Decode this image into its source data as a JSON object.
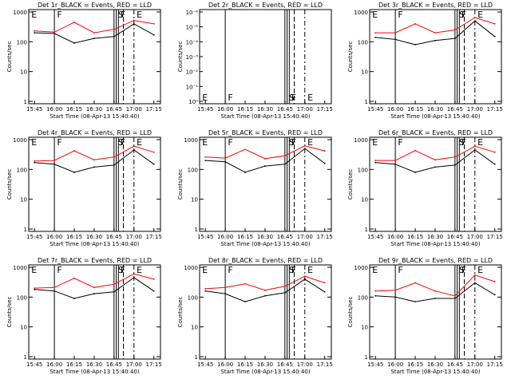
{
  "figure": {
    "x_tick_labels": [
      "15:45",
      "16:00",
      "16:15",
      "16:30",
      "16:45",
      "17:00",
      "17:15"
    ],
    "x_label": "Start Time (08-Apr-13 15:40:40)",
    "y_label": "Counts/sec",
    "y_tick_labels": [
      "1",
      "10",
      "100",
      "1000"
    ],
    "flag_letters": [
      "E",
      "F",
      "F",
      "S",
      "E"
    ],
    "colors": {
      "events": "#000000",
      "lld": "#ff0000",
      "axes": "#000000",
      "background": "#ffffff"
    }
  },
  "chart_data": [
    {
      "type": "line",
      "detector": "1r",
      "title": "Det 1r_BLACK = Events, RED = LLD",
      "xlabel": "Start Time (08-Apr-13 15:40:40)",
      "ylabel": "Counts/sec",
      "ylim": [
        1,
        1000
      ],
      "yscale": "log",
      "x": [
        "15:45",
        "16:00",
        "16:15",
        "16:30",
        "16:45",
        "17:00",
        "17:15"
      ],
      "series": [
        {
          "name": "Events",
          "color": "#000000",
          "values": [
            200,
            190,
            90,
            130,
            150,
            400,
            170
          ]
        },
        {
          "name": "LLD",
          "color": "#ff0000",
          "values": [
            230,
            210,
            450,
            200,
            260,
            520,
            400
          ]
        }
      ]
    },
    {
      "type": "line",
      "detector": "2r",
      "title": "Det 2r_BLACK = Events, RED = LLD",
      "xlabel": "Start Time (08-Apr-13 15:40:40)",
      "ylabel": "Counts/sec",
      "ylim": [
        1,
        1e-06
      ],
      "yscale": "log",
      "y_tick_labels": [
        "10⁰",
        "10⁻¹",
        "10⁻²",
        "10⁻³",
        "10⁻⁴",
        "10⁻⁵",
        "10⁻⁶"
      ],
      "x": [
        "15:45",
        "16:00",
        "16:15",
        "16:30",
        "16:45",
        "17:00",
        "17:15"
      ],
      "series": []
    },
    {
      "type": "line",
      "detector": "3r",
      "title": "Det 3r_BLACK = Events, RED = LLD",
      "xlabel": "Start Time (08-Apr-13 15:40:40)",
      "ylabel": "Counts/sec",
      "ylim": [
        1,
        1000
      ],
      "yscale": "log",
      "x": [
        "15:45",
        "16:00",
        "16:15",
        "16:30",
        "16:45",
        "17:00",
        "17:15"
      ],
      "series": [
        {
          "name": "Events",
          "color": "#000000",
          "values": [
            140,
            120,
            80,
            110,
            130,
            500,
            150
          ]
        },
        {
          "name": "LLD",
          "color": "#ff0000",
          "values": [
            200,
            200,
            400,
            200,
            250,
            650,
            400
          ]
        }
      ]
    },
    {
      "type": "line",
      "detector": "4r",
      "title": "Det 4r_BLACK = Events, RED = LLD",
      "xlabel": "Start Time (08-Apr-13 15:40:40)",
      "ylabel": "Counts/sec",
      "ylim": [
        1,
        1000
      ],
      "yscale": "log",
      "x": [
        "15:45",
        "16:00",
        "16:15",
        "16:30",
        "16:45",
        "17:00",
        "17:15"
      ],
      "series": [
        {
          "name": "Events",
          "color": "#000000",
          "values": [
            170,
            150,
            80,
            120,
            140,
            450,
            150
          ]
        },
        {
          "name": "LLD",
          "color": "#ff0000",
          "values": [
            190,
            200,
            420,
            210,
            260,
            600,
            380
          ]
        }
      ]
    },
    {
      "type": "line",
      "detector": "5r",
      "title": "Det 5r_BLACK = Events, RED = LLD",
      "xlabel": "Start Time (08-Apr-13 15:40:40)",
      "ylabel": "Counts/sec",
      "ylim": [
        1,
        1000
      ],
      "yscale": "log",
      "x": [
        "15:45",
        "16:00",
        "16:15",
        "16:30",
        "16:45",
        "17:00",
        "17:15"
      ],
      "series": [
        {
          "name": "Events",
          "color": "#000000",
          "values": [
            200,
            180,
            80,
            130,
            150,
            500,
            160
          ]
        },
        {
          "name": "LLD",
          "color": "#ff0000",
          "values": [
            260,
            240,
            470,
            230,
            290,
            620,
            420
          ]
        }
      ]
    },
    {
      "type": "line",
      "detector": "6r",
      "title": "Det 6r_BLACK = Events, RED = LLD",
      "xlabel": "Start Time (08-Apr-13 15:40:40)",
      "ylabel": "Counts/sec",
      "ylim": [
        1,
        1000
      ],
      "yscale": "log",
      "x": [
        "15:45",
        "16:00",
        "16:15",
        "16:30",
        "16:45",
        "17:00",
        "17:15"
      ],
      "series": [
        {
          "name": "Events",
          "color": "#000000",
          "values": [
            170,
            150,
            80,
            120,
            140,
            450,
            150
          ]
        },
        {
          "name": "LLD",
          "color": "#ff0000",
          "values": [
            200,
            200,
            430,
            210,
            260,
            600,
            380
          ]
        }
      ]
    },
    {
      "type": "line",
      "detector": "7r",
      "title": "Det 7r_BLACK = Events, RED = LLD",
      "xlabel": "Start Time (08-Apr-13 15:40:40)",
      "ylabel": "Counts/sec",
      "ylim": [
        1,
        1000
      ],
      "yscale": "log",
      "x": [
        "15:45",
        "16:00",
        "16:15",
        "16:30",
        "16:45",
        "17:00",
        "17:15"
      ],
      "series": [
        {
          "name": "Events",
          "color": "#000000",
          "values": [
            180,
            160,
            90,
            130,
            150,
            450,
            160
          ]
        },
        {
          "name": "LLD",
          "color": "#ff0000",
          "values": [
            200,
            210,
            430,
            210,
            270,
            600,
            400
          ]
        }
      ]
    },
    {
      "type": "line",
      "detector": "8r",
      "title": "Det 8r_BLACK = Events, RED = LLD",
      "xlabel": "Start Time (08-Apr-13 15:40:40)",
      "ylabel": "Counts/sec",
      "ylim": [
        1,
        1000
      ],
      "yscale": "log",
      "x": [
        "15:45",
        "16:00",
        "16:15",
        "16:30",
        "16:45",
        "17:00",
        "17:15"
      ],
      "series": [
        {
          "name": "Events",
          "color": "#000000",
          "values": [
            160,
            130,
            70,
            110,
            140,
            400,
            150
          ]
        },
        {
          "name": "LLD",
          "color": "#ff0000",
          "values": [
            190,
            210,
            280,
            170,
            230,
            500,
            300
          ]
        }
      ]
    },
    {
      "type": "line",
      "detector": "9r",
      "title": "Det 9r_BLACK = Events, RED = LLD",
      "xlabel": "Start Time (08-Apr-13 15:40:40)",
      "ylabel": "Counts/sec",
      "ylim": [
        1,
        1000
      ],
      "yscale": "log",
      "x": [
        "15:45",
        "16:00",
        "16:15",
        "16:30",
        "16:45",
        "17:00",
        "17:15"
      ],
      "series": [
        {
          "name": "Events",
          "color": "#000000",
          "values": [
            110,
            100,
            70,
            90,
            90,
            300,
            120
          ]
        },
        {
          "name": "LLD",
          "color": "#ff0000",
          "values": [
            160,
            170,
            300,
            160,
            110,
            550,
            330
          ]
        }
      ]
    }
  ]
}
